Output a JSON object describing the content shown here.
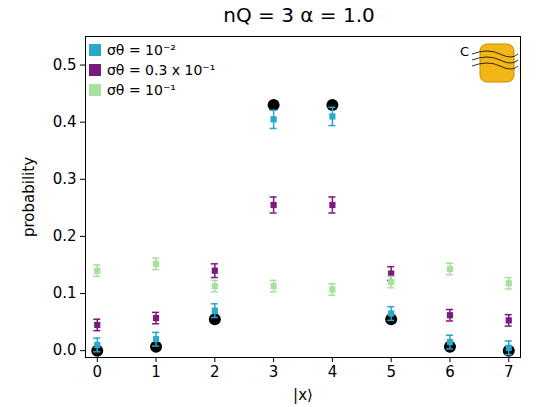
{
  "chart_data": {
    "type": "scatter",
    "title": "nQ = 3   α = 1.0",
    "x_label": "|x⟩",
    "y_label": "probability",
    "xlim": [
      -0.2,
      7.2
    ],
    "xticks": [
      0,
      1,
      2,
      3,
      4,
      5,
      6,
      7
    ],
    "ylim": [
      -0.012,
      0.55
    ],
    "yticks": [
      {
        "value": 0,
        "label": "0.0"
      },
      {
        "value": 0.1,
        "label": "0.1"
      },
      {
        "value": 0.2,
        "label": "0.2"
      },
      {
        "value": 0.3,
        "label": "0.3"
      },
      {
        "value": 0.4,
        "label": "0.4"
      },
      {
        "value": 0.5,
        "label": "0.5"
      }
    ],
    "legend": "upper left",
    "annotations": [
      {
        "text": "C"
      }
    ],
    "x": [
      0,
      1,
      2,
      3,
      4,
      5,
      6,
      7
    ],
    "series": [
      {
        "color": "#000000",
        "marker": "circle",
        "values": [
          0.0,
          0.007,
          0.055,
          0.43,
          0.43,
          0.055,
          0.007,
          0.0
        ]
      },
      {
        "name": "σθ = 10⁻²",
        "color": "#29a9c9",
        "marker": "square",
        "values": [
          0.01,
          0.02,
          0.07,
          0.405,
          0.41,
          0.065,
          0.015,
          0.005
        ],
        "errors": [
          0.012,
          0.012,
          0.012,
          0.016,
          0.016,
          0.012,
          0.012,
          0.012
        ]
      },
      {
        "name": "σθ = 0.3 x 10⁻¹",
        "color": "#7b1a7e",
        "marker": "square",
        "values": [
          0.045,
          0.057,
          0.14,
          0.255,
          0.255,
          0.135,
          0.062,
          0.053
        ],
        "errors": [
          0.01,
          0.01,
          0.012,
          0.014,
          0.014,
          0.012,
          0.01,
          0.01
        ]
      },
      {
        "name": "σθ = 10⁻¹",
        "color": "#a8e0a0",
        "marker": "square",
        "values": [
          0.14,
          0.152,
          0.113,
          0.113,
          0.107,
          0.12,
          0.143,
          0.118
        ],
        "errors": [
          0.01,
          0.01,
          0.01,
          0.01,
          0.01,
          0.01,
          0.01,
          0.01
        ]
      }
    ]
  }
}
